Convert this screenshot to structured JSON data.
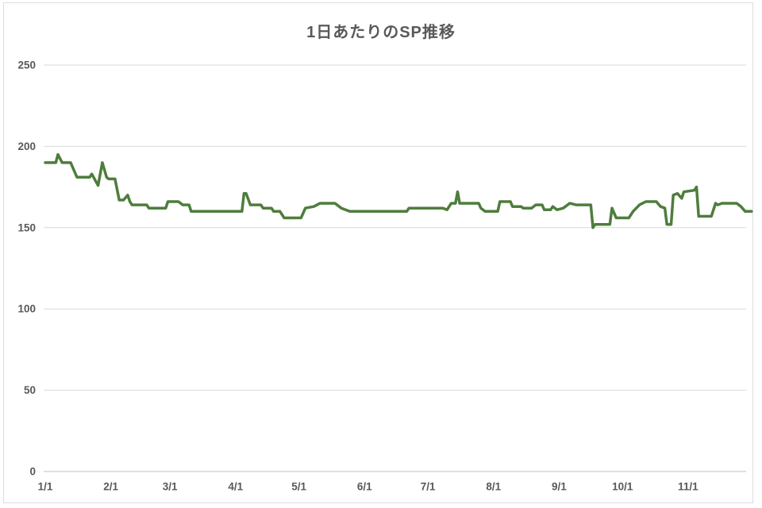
{
  "title": "1日あたりのSP推移",
  "colors": {
    "line": "#4e7d3c",
    "gridline": "#d9d9d9",
    "axis_line": "#bfbfbf",
    "label_text": "#595959",
    "frame_border": "#dcdcdc",
    "background": "#ffffff"
  },
  "chart_data": {
    "type": "line",
    "title": "1日あたりのSP推移",
    "xlabel": "",
    "ylabel": "",
    "legend": "none",
    "grid": "horizontal",
    "y_ticks": [
      0,
      50,
      100,
      150,
      200,
      250
    ],
    "ylim": [
      0,
      250
    ],
    "x_tick_labels": [
      "1/1",
      "2/1",
      "3/1",
      "4/1",
      "5/1",
      "6/1",
      "7/1",
      "8/1",
      "9/1",
      "10/1",
      "11/1"
    ],
    "x_tick_days": [
      0,
      31,
      59,
      90,
      120,
      151,
      181,
      212,
      243,
      273,
      304
    ],
    "x_domain_days": [
      0,
      335
    ],
    "series": [
      {
        "name": "SP",
        "points_format": "[day_index_from_1/1, value]",
        "points": [
          [
            0,
            190
          ],
          [
            5,
            190
          ],
          [
            6,
            195
          ],
          [
            8,
            190
          ],
          [
            12,
            190
          ],
          [
            15,
            181
          ],
          [
            21,
            181
          ],
          [
            22,
            183
          ],
          [
            25,
            176
          ],
          [
            27,
            190
          ],
          [
            29,
            181
          ],
          [
            30,
            180
          ],
          [
            33,
            180
          ],
          [
            35,
            167
          ],
          [
            37,
            167
          ],
          [
            39,
            170
          ],
          [
            40,
            166
          ],
          [
            41,
            164
          ],
          [
            48,
            164
          ],
          [
            49,
            162
          ],
          [
            57,
            162
          ],
          [
            58,
            166
          ],
          [
            63,
            166
          ],
          [
            65,
            164
          ],
          [
            68,
            164
          ],
          [
            69,
            160
          ],
          [
            93,
            160
          ],
          [
            94,
            171
          ],
          [
            95,
            171
          ],
          [
            97,
            164
          ],
          [
            102,
            164
          ],
          [
            103,
            162
          ],
          [
            107,
            162
          ],
          [
            108,
            160
          ],
          [
            111,
            160
          ],
          [
            113,
            156
          ],
          [
            121,
            156
          ],
          [
            123,
            162
          ],
          [
            127,
            163
          ],
          [
            130,
            165
          ],
          [
            137,
            165
          ],
          [
            140,
            162
          ],
          [
            144,
            160
          ],
          [
            171,
            160
          ],
          [
            172,
            162
          ],
          [
            188,
            162
          ],
          [
            190,
            161
          ],
          [
            192,
            165
          ],
          [
            194,
            165
          ],
          [
            195,
            172
          ],
          [
            196,
            165
          ],
          [
            205,
            165
          ],
          [
            206,
            162
          ],
          [
            208,
            160
          ],
          [
            214,
            160
          ],
          [
            215,
            166
          ],
          [
            220,
            166
          ],
          [
            221,
            163
          ],
          [
            225,
            163
          ],
          [
            226,
            162
          ],
          [
            230,
            162
          ],
          [
            232,
            164
          ],
          [
            235,
            164
          ],
          [
            236,
            161
          ],
          [
            239,
            161
          ],
          [
            240,
            163
          ],
          [
            242,
            161
          ],
          [
            245,
            162
          ],
          [
            248,
            165
          ],
          [
            251,
            164
          ],
          [
            258,
            164
          ],
          [
            259,
            150
          ],
          [
            260,
            152
          ],
          [
            267,
            152
          ],
          [
            268,
            162
          ],
          [
            270,
            156
          ],
          [
            276,
            156
          ],
          [
            278,
            160
          ],
          [
            281,
            164
          ],
          [
            284,
            166
          ],
          [
            289,
            166
          ],
          [
            291,
            163
          ],
          [
            293,
            162
          ],
          [
            294,
            152
          ],
          [
            296,
            152
          ],
          [
            297,
            170
          ],
          [
            299,
            171
          ],
          [
            301,
            168
          ],
          [
            302,
            172
          ],
          [
            307,
            173
          ],
          [
            308,
            175
          ],
          [
            309,
            157
          ],
          [
            315,
            157
          ],
          [
            317,
            165
          ],
          [
            318,
            164
          ],
          [
            320,
            165
          ],
          [
            327,
            165
          ],
          [
            329,
            163
          ],
          [
            331,
            160
          ],
          [
            334,
            160
          ]
        ]
      }
    ]
  }
}
